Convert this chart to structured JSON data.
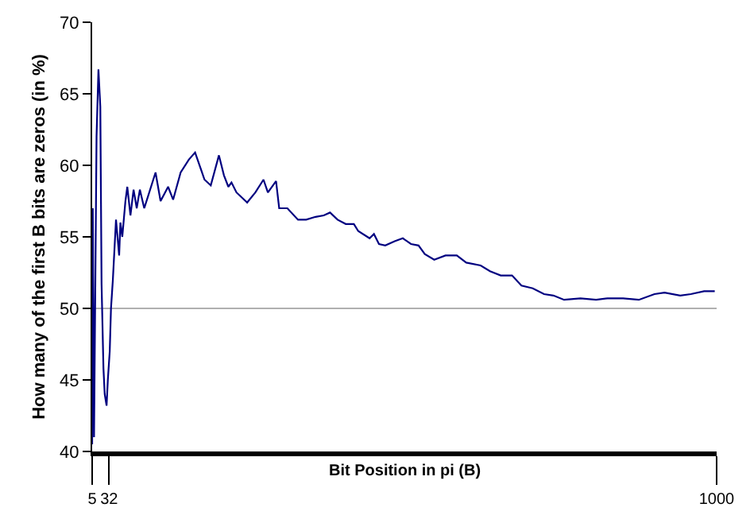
{
  "chart_data": {
    "type": "line",
    "xlabel": "Bit Position in pi (B)",
    "ylabel": "How many of the first B bits are zeros (in %)",
    "xlim": [
      5,
      1000
    ],
    "xticks": [
      5,
      32,
      1000
    ],
    "ylim": [
      40,
      70
    ],
    "yticks": [
      40,
      45,
      50,
      55,
      60,
      65,
      70
    ],
    "grid": false,
    "marker": "none",
    "line_style": "solid",
    "ref_lines": [
      {
        "axis": "y",
        "value": 50,
        "color": "#b0b0b0"
      }
    ],
    "series": [
      {
        "color": "#000080",
        "x": [
          5,
          6,
          8,
          12,
          15,
          18,
          20,
          23,
          25,
          28,
          30,
          33,
          35,
          38,
          43,
          48,
          50,
          53,
          58,
          61,
          66,
          71,
          76,
          81,
          88,
          106,
          114,
          126,
          134,
          146,
          159,
          169,
          184,
          194,
          207,
          215,
          222,
          227,
          235,
          252,
          265,
          278,
          285,
          298,
          303,
          316,
          333,
          346,
          361,
          374,
          384,
          396,
          409,
          422,
          429,
          447,
          454,
          462,
          472,
          487,
          500,
          513,
          525,
          535,
          550,
          568,
          586,
          601,
          624,
          639,
          656,
          674,
          689,
          707,
          725,
          740,
          757,
          783,
          808,
          826,
          851,
          876,
          901,
          917,
          942,
          959,
          980,
          997
        ],
        "values": [
          40.5,
          57,
          41,
          62,
          66.7,
          64.1,
          51.7,
          45.8,
          44,
          43.2,
          45,
          47,
          50,
          52,
          56.2,
          53.7,
          56,
          55,
          57.5,
          58.5,
          56.5,
          58.3,
          57,
          58.3,
          57,
          59.5,
          57.5,
          58.5,
          57.6,
          59.5,
          60.4,
          60.9,
          59,
          58.6,
          60.7,
          59.3,
          58.5,
          58.8,
          58.1,
          57.4,
          58.1,
          59,
          58.1,
          58.9,
          57,
          57,
          56.2,
          56.2,
          56.4,
          56.5,
          56.7,
          56.2,
          55.9,
          55.9,
          55.4,
          54.9,
          55.2,
          54.5,
          54.4,
          54.7,
          54.9,
          54.5,
          54.4,
          53.8,
          53.4,
          53.7,
          53.7,
          53.2,
          53,
          52.6,
          52.3,
          52.3,
          51.6,
          51.4,
          51,
          50.9,
          50.6,
          50.7,
          50.6,
          50.7,
          50.7,
          50.6,
          51,
          51.1,
          50.9,
          51,
          51.2,
          51.2
        ]
      }
    ]
  }
}
